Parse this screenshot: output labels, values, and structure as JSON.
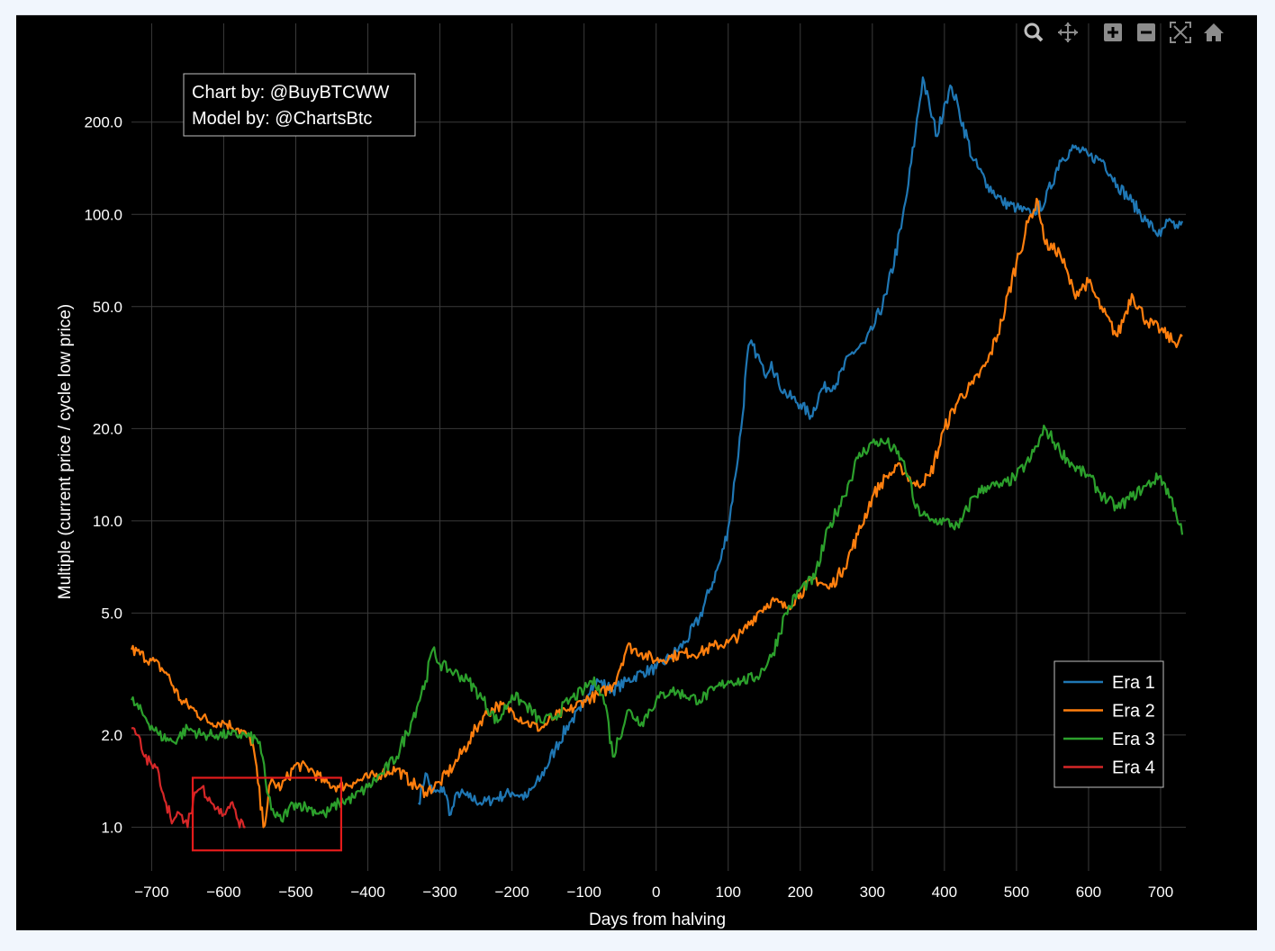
{
  "chart_data": {
    "type": "line",
    "title": "",
    "xlabel": "Days from halving",
    "ylabel": "Multiple (current price / cycle low price)",
    "y_scale": "log",
    "xlim": [
      -728,
      735
    ],
    "ylim": [
      0.72,
      420
    ],
    "x_ticks": [
      -700,
      -600,
      -500,
      -400,
      -300,
      -200,
      -100,
      0,
      100,
      200,
      300,
      400,
      500,
      600,
      700
    ],
    "x_tick_labels": [
      "−700",
      "−600",
      "−500",
      "−400",
      "−300",
      "−200",
      "−100",
      "0",
      "100",
      "200",
      "300",
      "400",
      "500",
      "600",
      "700"
    ],
    "y_ticks": [
      1,
      2,
      5,
      10,
      20,
      50,
      100,
      200
    ],
    "y_tick_labels": [
      "1.0",
      "2.0",
      "5.0",
      "10.0",
      "20.0",
      "50.0",
      "100.0",
      "200.0"
    ],
    "grid": true,
    "legend_position": "bottom-right",
    "series": [
      {
        "name": "Era 1",
        "color": "#1f77b4",
        "x": [
          -330,
          -320,
          -310,
          -300,
          -295,
          -285,
          -275,
          -260,
          -240,
          -220,
          -200,
          -180,
          -160,
          -140,
          -120,
          -105,
          -100,
          -90,
          -80,
          -60,
          -40,
          -20,
          0,
          20,
          40,
          60,
          75,
          90,
          100,
          110,
          120,
          125,
          130,
          140,
          150,
          160,
          170,
          180,
          200,
          215,
          230,
          250,
          270,
          290,
          300,
          320,
          340,
          350,
          360,
          370,
          380,
          390,
          400,
          410,
          420,
          440,
          460,
          480,
          500,
          520,
          540,
          560,
          580,
          600,
          620,
          640,
          660,
          680,
          700,
          710,
          720,
          730
        ],
        "y": [
          1.2,
          1.5,
          1.3,
          1.3,
          1.35,
          1.1,
          1.3,
          1.25,
          1.2,
          1.25,
          1.3,
          1.25,
          1.45,
          1.8,
          2.2,
          2.4,
          2.6,
          2.9,
          3.0,
          2.8,
          3.0,
          3.2,
          3.3,
          3.6,
          4.0,
          4.8,
          6.0,
          7.5,
          9.5,
          14,
          22,
          32,
          38,
          35,
          30,
          33,
          28,
          26,
          24,
          22,
          27,
          28,
          35,
          38,
          42,
          55,
          90,
          125,
          185,
          280,
          220,
          180,
          230,
          260,
          220,
          150,
          125,
          110,
          105,
          100,
          110,
          150,
          165,
          155,
          150,
          125,
          110,
          95,
          85,
          95,
          90,
          95
        ]
      },
      {
        "name": "Era 2",
        "color": "#ff7f0e",
        "x": [
          -728,
          -700,
          -680,
          -660,
          -640,
          -620,
          -600,
          -580,
          -560,
          -545,
          -535,
          -520,
          -500,
          -480,
          -460,
          -440,
          -420,
          -400,
          -380,
          -360,
          -340,
          -320,
          -300,
          -280,
          -260,
          -240,
          -220,
          -200,
          -180,
          -160,
          -140,
          -120,
          -100,
          -80,
          -60,
          -40,
          -20,
          0,
          20,
          40,
          60,
          80,
          100,
          120,
          140,
          160,
          180,
          200,
          220,
          240,
          260,
          280,
          300,
          320,
          340,
          360,
          380,
          400,
          420,
          440,
          460,
          480,
          500,
          520,
          530,
          540,
          560,
          580,
          600,
          620,
          640,
          660,
          680,
          700,
          720,
          730
        ],
        "y": [
          3.8,
          3.5,
          3.2,
          2.6,
          2.4,
          2.2,
          2.2,
          2.1,
          1.9,
          1.0,
          1.4,
          1.35,
          1.6,
          1.55,
          1.4,
          1.35,
          1.4,
          1.45,
          1.5,
          1.55,
          1.4,
          1.3,
          1.4,
          1.6,
          1.9,
          2.3,
          2.5,
          2.4,
          2.2,
          2.1,
          2.3,
          2.4,
          2.6,
          2.7,
          2.9,
          3.9,
          3.7,
          3.5,
          3.6,
          3.7,
          3.7,
          3.9,
          4.0,
          4.3,
          5.0,
          5.5,
          5.2,
          5.8,
          6.5,
          6.0,
          7.0,
          9.0,
          12,
          14,
          15,
          13,
          14,
          20,
          25,
          28,
          33,
          45,
          70,
          100,
          110,
          80,
          75,
          55,
          60,
          48,
          40,
          55,
          45,
          42,
          38,
          40
        ]
      },
      {
        "name": "Era 3",
        "color": "#2ca02c",
        "x": [
          -728,
          -710,
          -690,
          -670,
          -650,
          -630,
          -610,
          -590,
          -570,
          -550,
          -540,
          -530,
          -520,
          -510,
          -500,
          -480,
          -460,
          -440,
          -420,
          -400,
          -380,
          -360,
          -340,
          -320,
          -310,
          -300,
          -280,
          -260,
          -240,
          -220,
          -200,
          -180,
          -160,
          -140,
          -120,
          -100,
          -90,
          -80,
          -70,
          -60,
          -40,
          -20,
          0,
          20,
          40,
          60,
          80,
          100,
          120,
          140,
          160,
          180,
          200,
          220,
          240,
          260,
          280,
          300,
          320,
          340,
          350,
          360,
          380,
          400,
          420,
          440,
          460,
          480,
          500,
          520,
          540,
          560,
          580,
          600,
          620,
          640,
          660,
          680,
          700,
          720,
          730
        ],
        "y": [
          2.6,
          2.3,
          2.0,
          1.9,
          2.1,
          2.0,
          2.0,
          2.0,
          2.0,
          1.9,
          1.3,
          1.1,
          1.05,
          1.15,
          1.2,
          1.15,
          1.1,
          1.2,
          1.25,
          1.35,
          1.5,
          1.7,
          2.2,
          3.0,
          3.8,
          3.4,
          3.2,
          3.0,
          2.6,
          2.2,
          2.7,
          2.5,
          2.2,
          2.3,
          2.6,
          2.8,
          3.0,
          2.9,
          2.5,
          1.7,
          2.4,
          2.2,
          2.6,
          2.8,
          2.7,
          2.6,
          2.8,
          3.0,
          3.0,
          3.1,
          3.6,
          5.0,
          6.0,
          6.5,
          9.5,
          12,
          16,
          18,
          18,
          16,
          14,
          11,
          10,
          10,
          9.5,
          12,
          13,
          13,
          14,
          16,
          20,
          17,
          15,
          14,
          12,
          11,
          12,
          13,
          14,
          11,
          9
        ]
      },
      {
        "name": "Era 4",
        "color": "#d62728",
        "x": [
          -728,
          -720,
          -710,
          -700,
          -690,
          -680,
          -670,
          -660,
          -650,
          -640,
          -630,
          -620,
          -610,
          -600,
          -590,
          -580,
          -570
        ],
        "y": [
          2.1,
          2.0,
          1.7,
          1.6,
          1.5,
          1.2,
          1.05,
          1.1,
          1.0,
          1.3,
          1.35,
          1.25,
          1.15,
          1.1,
          1.2,
          1.05,
          1.0
        ]
      }
    ],
    "annotations": [
      {
        "type": "text_box",
        "lines": [
          "Chart by: @BuyBTCWW",
          "Model by: @ChartsBtc"
        ]
      },
      {
        "type": "highlight_rect",
        "color": "#e31b1b",
        "x_range": [
          -643,
          -437
        ],
        "y_range": [
          0.84,
          1.45
        ]
      }
    ]
  },
  "toolbar": [
    {
      "icon": "zoom-icon",
      "glyph": "⚲"
    },
    {
      "icon": "pan-icon",
      "glyph": "✥"
    },
    {
      "icon": "zoom-in-icon",
      "glyph": "+"
    },
    {
      "icon": "zoom-out-icon",
      "glyph": "−"
    },
    {
      "icon": "autoscale-icon",
      "glyph": "⤢"
    },
    {
      "icon": "reset-axes-icon",
      "glyph": "⌂"
    }
  ],
  "colors": {
    "background": "#000000",
    "page": "#f1f6fd",
    "grid": "#3a3a3a",
    "text": "#ffffff",
    "highlight": "#e31b1b"
  }
}
